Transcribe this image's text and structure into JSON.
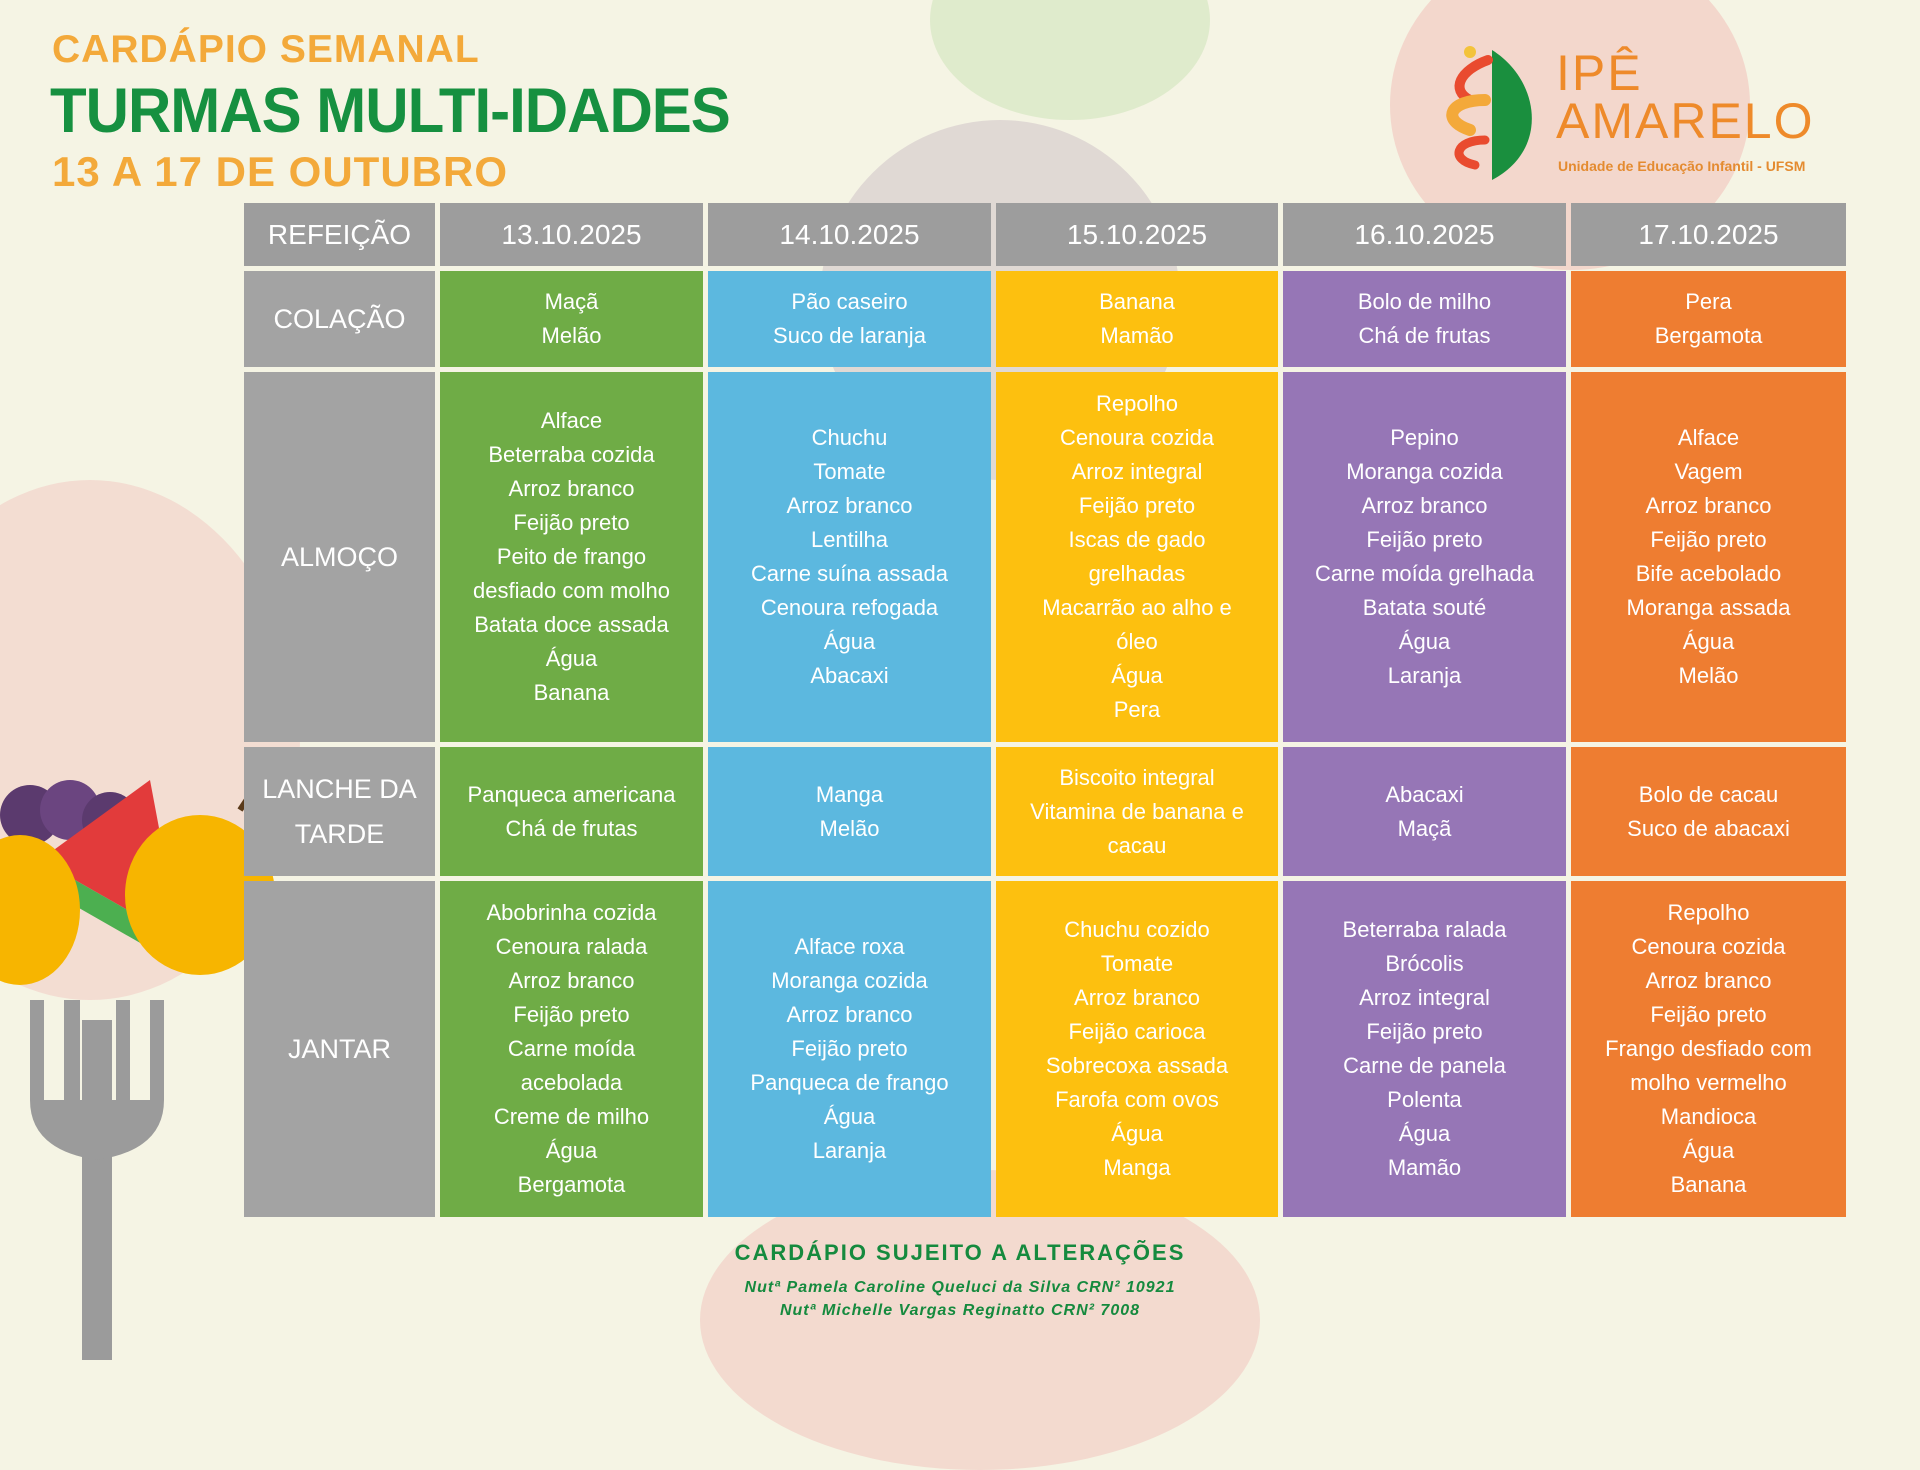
{
  "header": {
    "subtitle": "CARDÁPIO SEMANAL",
    "title": "TURMAS MULTI-IDADES",
    "period": "13 A 17 DE OUTUBRO"
  },
  "logo": {
    "line1": "IPÊ",
    "line2": "AMARELO",
    "tagline": "Unidade de Educação Infantil - UFSM"
  },
  "colors": {
    "green": "#6fac46",
    "blue": "#5cb8df",
    "yellow": "#fdc00f",
    "purple": "#9676b6",
    "orange": "#ee7d31",
    "gray": "#9d9d9d",
    "title_green": "#169040",
    "title_orange": "#f3a93a"
  },
  "table": {
    "corner": "REFEIÇÃO",
    "dates": [
      "13.10.2025",
      "14.10.2025",
      "15.10.2025",
      "16.10.2025",
      "17.10.2025"
    ],
    "rows": [
      {
        "meal": "COLAÇÃO",
        "items": [
          "Maçã\nMelão",
          "Pão caseiro\nSuco de laranja",
          "Banana\nMamão",
          "Bolo de milho\nChá de frutas",
          "Pera\nBergamota"
        ]
      },
      {
        "meal": "ALMOÇO",
        "items": [
          "Alface\nBeterraba cozida\nArroz branco\nFeijão preto\nPeito de frango\ndesfiado com molho\nBatata doce assada\nÁgua\nBanana",
          "Chuchu\nTomate\nArroz branco\nLentilha\nCarne suína assada\nCenoura refogada\nÁgua\nAbacaxi",
          "Repolho\nCenoura cozida\nArroz integral\nFeijão preto\nIscas de gado\ngrelhadas\nMacarrão ao alho e\nóleo\nÁgua\nPera",
          "Pepino\nMoranga cozida\nArroz branco\nFeijão preto\nCarne moída grelhada\nBatata souté\nÁgua\nLaranja",
          "Alface\nVagem\nArroz branco\nFeijão preto\nBife acebolado\nMoranga assada\nÁgua\nMelão"
        ]
      },
      {
        "meal": "LANCHE DA\nTARDE",
        "items": [
          "Panqueca americana\nChá de frutas",
          "Manga\nMelão",
          "Biscoito integral\nVitamina de banana e\ncacau",
          "Abacaxi\nMaçã",
          "Bolo de cacau\nSuco de abacaxi"
        ]
      },
      {
        "meal": "JANTAR",
        "items": [
          "Abobrinha cozida\nCenoura ralada\nArroz branco\nFeijão preto\nCarne moída\nacebolada\nCreme de milho\nÁgua\nBergamota",
          "Alface roxa\nMoranga cozida\nArroz branco\nFeijão preto\nPanqueca de frango\nÁgua\nLaranja",
          "Chuchu cozido\nTomate\nArroz branco\nFeijão carioca\nSobrecoxa assada\nFarofa com ovos\nÁgua\nManga",
          "Beterraba ralada\nBrócolis\nArroz integral\nFeijão preto\nCarne de panela\nPolenta\nÁgua\nMamão",
          "Repolho\nCenoura cozida\nArroz branco\nFeijão preto\nFrango desfiado com\nmolho vermelho\nMandioca\nÁgua\nBanana"
        ]
      }
    ]
  },
  "footer": {
    "notice": "CARDÁPIO SUJEITO A ALTERAÇÕES",
    "nutritionist1": "Nutª Pamela Caroline Queluci da Silva CRN² 10921",
    "nutritionist2": "Nutª Michelle Vargas Reginatto CRN² 7008"
  }
}
